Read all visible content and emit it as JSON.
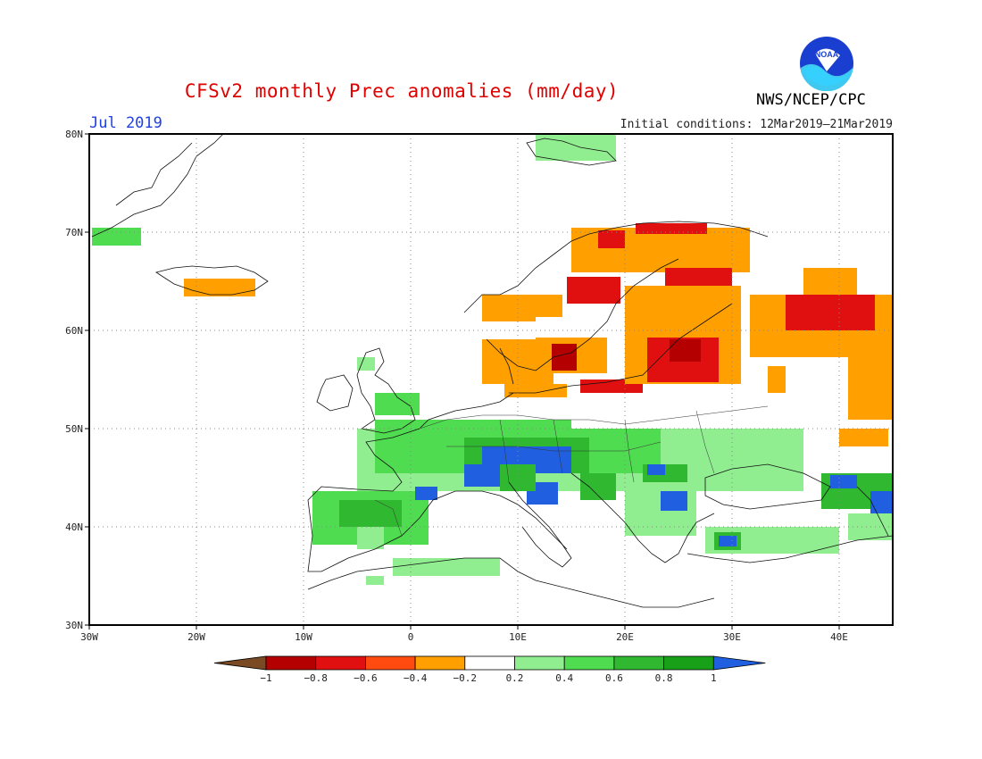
{
  "title": "CFSv2 monthly Prec anomalies (mm/day)",
  "month": "Jul 2019",
  "initial_conditions": "Initial conditions: 12Mar2019–21Mar2019",
  "agency": "NWS/NCEP/CPC",
  "logo_text": "NOAA",
  "map": {
    "lon_range": [
      -30,
      45
    ],
    "lat_range": [
      30,
      80
    ],
    "lon_ticks": [
      "30W",
      "20W",
      "10W",
      "0",
      "10E",
      "20E",
      "30E",
      "40E"
    ],
    "lat_ticks": [
      "30N",
      "40N",
      "50N",
      "60N",
      "70N",
      "80N"
    ],
    "gridlines": "dotted"
  },
  "colorbar": {
    "labels": [
      "−1",
      "−0.8",
      "−0.6",
      "−0.4",
      "−0.2",
      "0.2",
      "0.4",
      "0.6",
      "0.8",
      "1"
    ],
    "colors": [
      "#7a4a24",
      "#b40000",
      "#e01010",
      "#ff4a10",
      "#ffa000",
      "#ffffff",
      "#90ee90",
      "#50dc50",
      "#30b830",
      "#18a018",
      "#2060e0"
    ]
  }
}
